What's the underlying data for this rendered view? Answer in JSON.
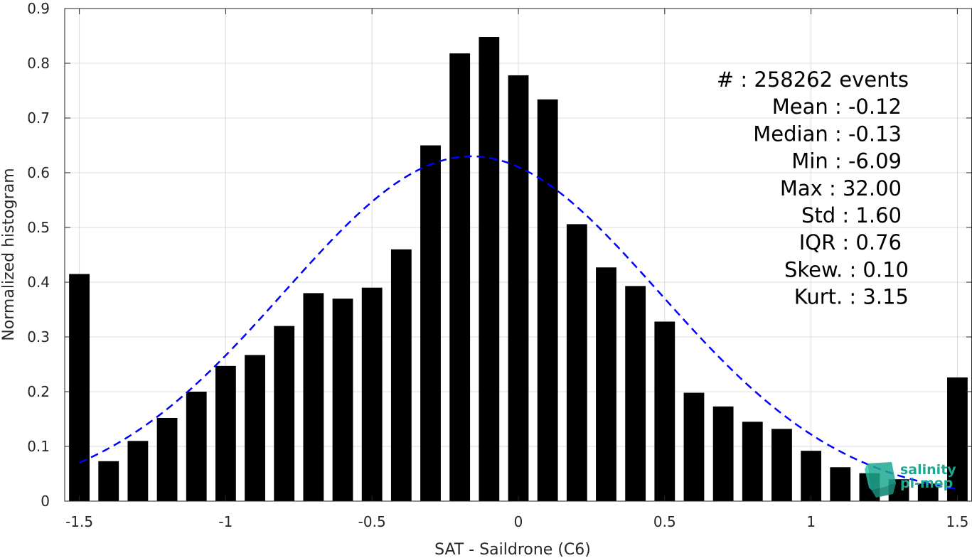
{
  "chart_data": {
    "type": "bar",
    "title": "",
    "xlabel": "SAT - Saildrone (C6)",
    "ylabel": "Normalized histogram",
    "xlim": [
      -1.55,
      1.55
    ],
    "ylim": [
      0,
      0.9
    ],
    "xticks": [
      -1.5,
      -1,
      -0.5,
      0,
      0.5,
      1,
      1.5
    ],
    "xtick_labels": [
      "-1.5",
      "-1",
      "-0.5",
      "0",
      "0.5",
      "1",
      "1.5"
    ],
    "yticks": [
      0,
      0.1,
      0.2,
      0.3,
      0.4,
      0.5,
      0.6,
      0.7,
      0.8,
      0.9
    ],
    "ytick_labels": [
      "0",
      "0.1",
      "0.2",
      "0.3",
      "0.4",
      "0.5",
      "0.6",
      "0.7",
      "0.8",
      "0.9"
    ],
    "grid": true,
    "bar_color": "#000000",
    "bin_width": 0.1,
    "bar_width_fraction": 0.7,
    "x": [
      -1.5,
      -1.4,
      -1.3,
      -1.2,
      -1.1,
      -1.0,
      -0.9,
      -0.8,
      -0.7,
      -0.6,
      -0.5,
      -0.4,
      -0.3,
      -0.2,
      -0.1,
      0.0,
      0.1,
      0.2,
      0.3,
      0.4,
      0.5,
      0.6,
      0.7,
      0.8,
      0.9,
      1.0,
      1.1,
      1.2,
      1.3,
      1.4,
      1.5
    ],
    "values": [
      0.415,
      0.073,
      0.11,
      0.152,
      0.2,
      0.247,
      0.267,
      0.32,
      0.38,
      0.37,
      0.39,
      0.46,
      0.65,
      0.818,
      0.848,
      0.778,
      0.734,
      0.506,
      0.427,
      0.393,
      0.328,
      0.198,
      0.173,
      0.145,
      0.132,
      0.092,
      0.062,
      0.051,
      0.04,
      0.032,
      0.226
    ],
    "fit_curve": {
      "type": "gaussian",
      "color": "#0000ff",
      "style": "dashed",
      "mean": -0.16,
      "std": 0.64,
      "peak": 0.63,
      "x_range": [
        -1.5,
        1.5
      ]
    },
    "annotations": [
      "#  : 258262 events",
      "Mean : -0.12",
      "Median : -0.13",
      "Min : -6.09",
      "Max : 32.00",
      "Std : 1.60",
      "IQR : 0.76",
      "Skew. : 0.10",
      "Kurt. : 3.15"
    ]
  },
  "logo": {
    "line1": "salinity",
    "line2": "pi-mep",
    "text_color": "#1fa891",
    "icon_color": "#1fa891"
  }
}
